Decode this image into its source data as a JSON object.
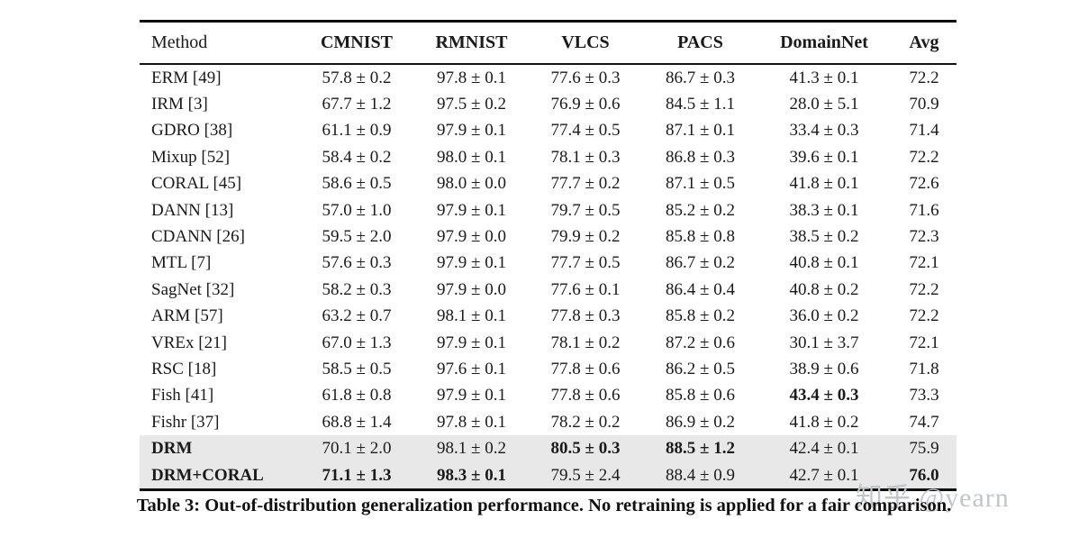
{
  "page": {
    "background": "#ffffff"
  },
  "table": {
    "columns": [
      "Method",
      "CMNIST",
      "RMNIST",
      "VLCS",
      "PACS",
      "DomainNet",
      "Avg"
    ],
    "rows": [
      {
        "method": "ERM [49]",
        "values": [
          "57.8 ± 0.2",
          "97.8 ± 0.1",
          "77.6 ± 0.3",
          "86.7 ± 0.3",
          "41.3 ± 0.1",
          "72.2"
        ],
        "bold_method": false,
        "bold_values": [],
        "highlighted": false
      },
      {
        "method": "IRM [3]",
        "values": [
          "67.7 ± 1.2",
          "97.5 ± 0.2",
          "76.9 ± 0.6",
          "84.5 ± 1.1",
          "28.0 ± 5.1",
          "70.9"
        ],
        "bold_method": false,
        "bold_values": [],
        "highlighted": false
      },
      {
        "method": "GDRO [38]",
        "values": [
          "61.1 ± 0.9",
          "97.9 ± 0.1",
          "77.4 ± 0.5",
          "87.1 ± 0.1",
          "33.4 ± 0.3",
          "71.4"
        ],
        "bold_method": false,
        "bold_values": [],
        "highlighted": false
      },
      {
        "method": "Mixup [52]",
        "values": [
          "58.4 ± 0.2",
          "98.0 ± 0.1",
          "78.1 ± 0.3",
          "86.8 ± 0.3",
          "39.6 ± 0.1",
          "72.2"
        ],
        "bold_method": false,
        "bold_values": [],
        "highlighted": false
      },
      {
        "method": "CORAL [45]",
        "values": [
          "58.6 ± 0.5",
          "98.0 ± 0.0",
          "77.7 ± 0.2",
          "87.1 ± 0.5",
          "41.8 ± 0.1",
          "72.6"
        ],
        "bold_method": false,
        "bold_values": [],
        "highlighted": false
      },
      {
        "method": "DANN [13]",
        "values": [
          "57.0 ± 1.0",
          "97.9 ± 0.1",
          "79.7 ± 0.5",
          "85.2 ± 0.2",
          "38.3 ± 0.1",
          "71.6"
        ],
        "bold_method": false,
        "bold_values": [],
        "highlighted": false
      },
      {
        "method": "CDANN [26]",
        "values": [
          "59.5 ± 2.0",
          "97.9 ± 0.0",
          "79.9 ± 0.2",
          "85.8 ± 0.8",
          "38.5 ± 0.2",
          "72.3"
        ],
        "bold_method": false,
        "bold_values": [],
        "highlighted": false
      },
      {
        "method": "MTL [7]",
        "values": [
          "57.6 ± 0.3",
          "97.9 ± 0.1",
          "77.7 ± 0.5",
          "86.7 ± 0.2",
          "40.8 ± 0.1",
          "72.1"
        ],
        "bold_method": false,
        "bold_values": [],
        "highlighted": false
      },
      {
        "method": "SagNet [32]",
        "values": [
          "58.2 ± 0.3",
          "97.9 ± 0.0",
          "77.6 ± 0.1",
          "86.4 ± 0.4",
          "40.8 ± 0.2",
          "72.2"
        ],
        "bold_method": false,
        "bold_values": [],
        "highlighted": false
      },
      {
        "method": "ARM [57]",
        "values": [
          "63.2 ± 0.7",
          "98.1 ± 0.1",
          "77.8 ± 0.3",
          "85.8 ± 0.2",
          "36.0 ± 0.2",
          "72.2"
        ],
        "bold_method": false,
        "bold_values": [],
        "highlighted": false
      },
      {
        "method": "VREx [21]",
        "values": [
          "67.0 ± 1.3",
          "97.9 ± 0.1",
          "78.1 ± 0.2",
          "87.2 ± 0.6",
          "30.1 ± 3.7",
          "72.1"
        ],
        "bold_method": false,
        "bold_values": [],
        "highlighted": false
      },
      {
        "method": "RSC [18]",
        "values": [
          "58.5 ± 0.5",
          "97.6 ± 0.1",
          "77.8 ± 0.6",
          "86.2 ± 0.5",
          "38.9 ± 0.6",
          "71.8"
        ],
        "bold_method": false,
        "bold_values": [],
        "highlighted": false
      },
      {
        "method": "Fish [41]",
        "values": [
          "61.8 ± 0.8",
          "97.9 ± 0.1",
          "77.8 ± 0.6",
          "85.8 ± 0.6",
          "43.4 ± 0.3",
          "73.3"
        ],
        "bold_method": false,
        "bold_values": [
          4
        ],
        "highlighted": false
      },
      {
        "method": "Fishr [37]",
        "values": [
          "68.8 ± 1.4",
          "97.8 ± 0.1",
          "78.2 ± 0.2",
          "86.9 ± 0.2",
          "41.8 ± 0.2",
          "74.7"
        ],
        "bold_method": false,
        "bold_values": [],
        "highlighted": false
      },
      {
        "method": "DRM",
        "values": [
          "70.1 ± 2.0",
          "98.1 ± 0.2",
          "80.5 ± 0.3",
          "88.5 ± 1.2",
          "42.4 ± 0.1",
          "75.9"
        ],
        "bold_method": true,
        "bold_values": [
          2,
          3
        ],
        "highlighted": true
      },
      {
        "method": "DRM+CORAL",
        "values": [
          "71.1 ± 1.3",
          "98.3 ± 0.1",
          "79.5 ± 2.4",
          "88.4 ± 0.9",
          "42.7 ± 0.1",
          "76.0"
        ],
        "bold_method": true,
        "bold_values": [
          0,
          1,
          5
        ],
        "highlighted": true
      }
    ],
    "caption": "Table 3: Out-of-distribution generalization performance. No retraining is applied for a fair comparison.",
    "highlight_color": "#e8e8e8",
    "rule_color": "#0d0d0d"
  },
  "watermark": {
    "text": "知乎 @yearn",
    "color": "#c2c6ca"
  }
}
